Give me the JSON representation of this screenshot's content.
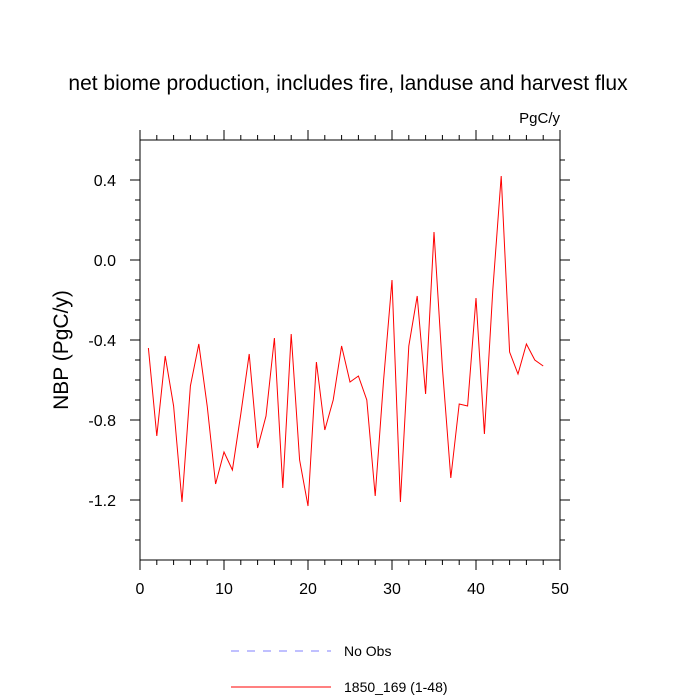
{
  "chart_data": {
    "type": "line",
    "title": "net biome production, includes fire, landuse and harvest flux",
    "units_label": "PgC/y",
    "ylabel": "NBP  (PgC/y)",
    "xlabel": "",
    "xlim": [
      0,
      50
    ],
    "ylim": [
      -1.5,
      0.6
    ],
    "x_ticks": [
      0,
      10,
      20,
      30,
      40,
      50
    ],
    "x_tick_labels": [
      "0",
      "10",
      "20",
      "30",
      "40",
      "50"
    ],
    "y_ticks": [
      0.4,
      0.0,
      -0.4,
      -0.8,
      -1.2
    ],
    "y_tick_labels": [
      "0.4",
      "0.0",
      "-0.4",
      "-0.8",
      "-1.2"
    ],
    "grid": false,
    "legend_position": "bottom",
    "legend": [
      {
        "label": "No Obs",
        "color": "#8080ff",
        "style": "dashed"
      },
      {
        "label": "1850_169 (1-48)",
        "color": "#ff0000",
        "style": "solid"
      }
    ],
    "series": [
      {
        "name": "1850_169 (1-48)",
        "color": "#ff0000",
        "x": [
          1,
          2,
          3,
          4,
          5,
          6,
          7,
          8,
          9,
          10,
          11,
          12,
          13,
          14,
          15,
          16,
          17,
          18,
          19,
          20,
          21,
          22,
          23,
          24,
          25,
          26,
          27,
          28,
          29,
          30,
          31,
          32,
          33,
          34,
          35,
          36,
          37,
          38,
          39,
          40,
          41,
          42,
          43,
          44,
          45,
          46,
          47,
          48
        ],
        "values": [
          -0.44,
          -0.88,
          -0.48,
          -0.73,
          -1.21,
          -0.63,
          -0.42,
          -0.73,
          -1.12,
          -0.96,
          -1.05,
          -0.77,
          -0.47,
          -0.94,
          -0.78,
          -0.39,
          -1.14,
          -0.37,
          -1.0,
          -1.23,
          -0.51,
          -0.85,
          -0.7,
          -0.43,
          -0.61,
          -0.58,
          -0.7,
          -1.18,
          -0.6,
          -0.1,
          -1.21,
          -0.43,
          -0.18,
          -0.67,
          0.14,
          -0.54,
          -1.09,
          -0.72,
          -0.73,
          -0.19,
          -0.87,
          -0.15,
          0.42,
          -0.46,
          -0.57,
          -0.42,
          -0.5,
          -0.53
        ]
      }
    ]
  }
}
